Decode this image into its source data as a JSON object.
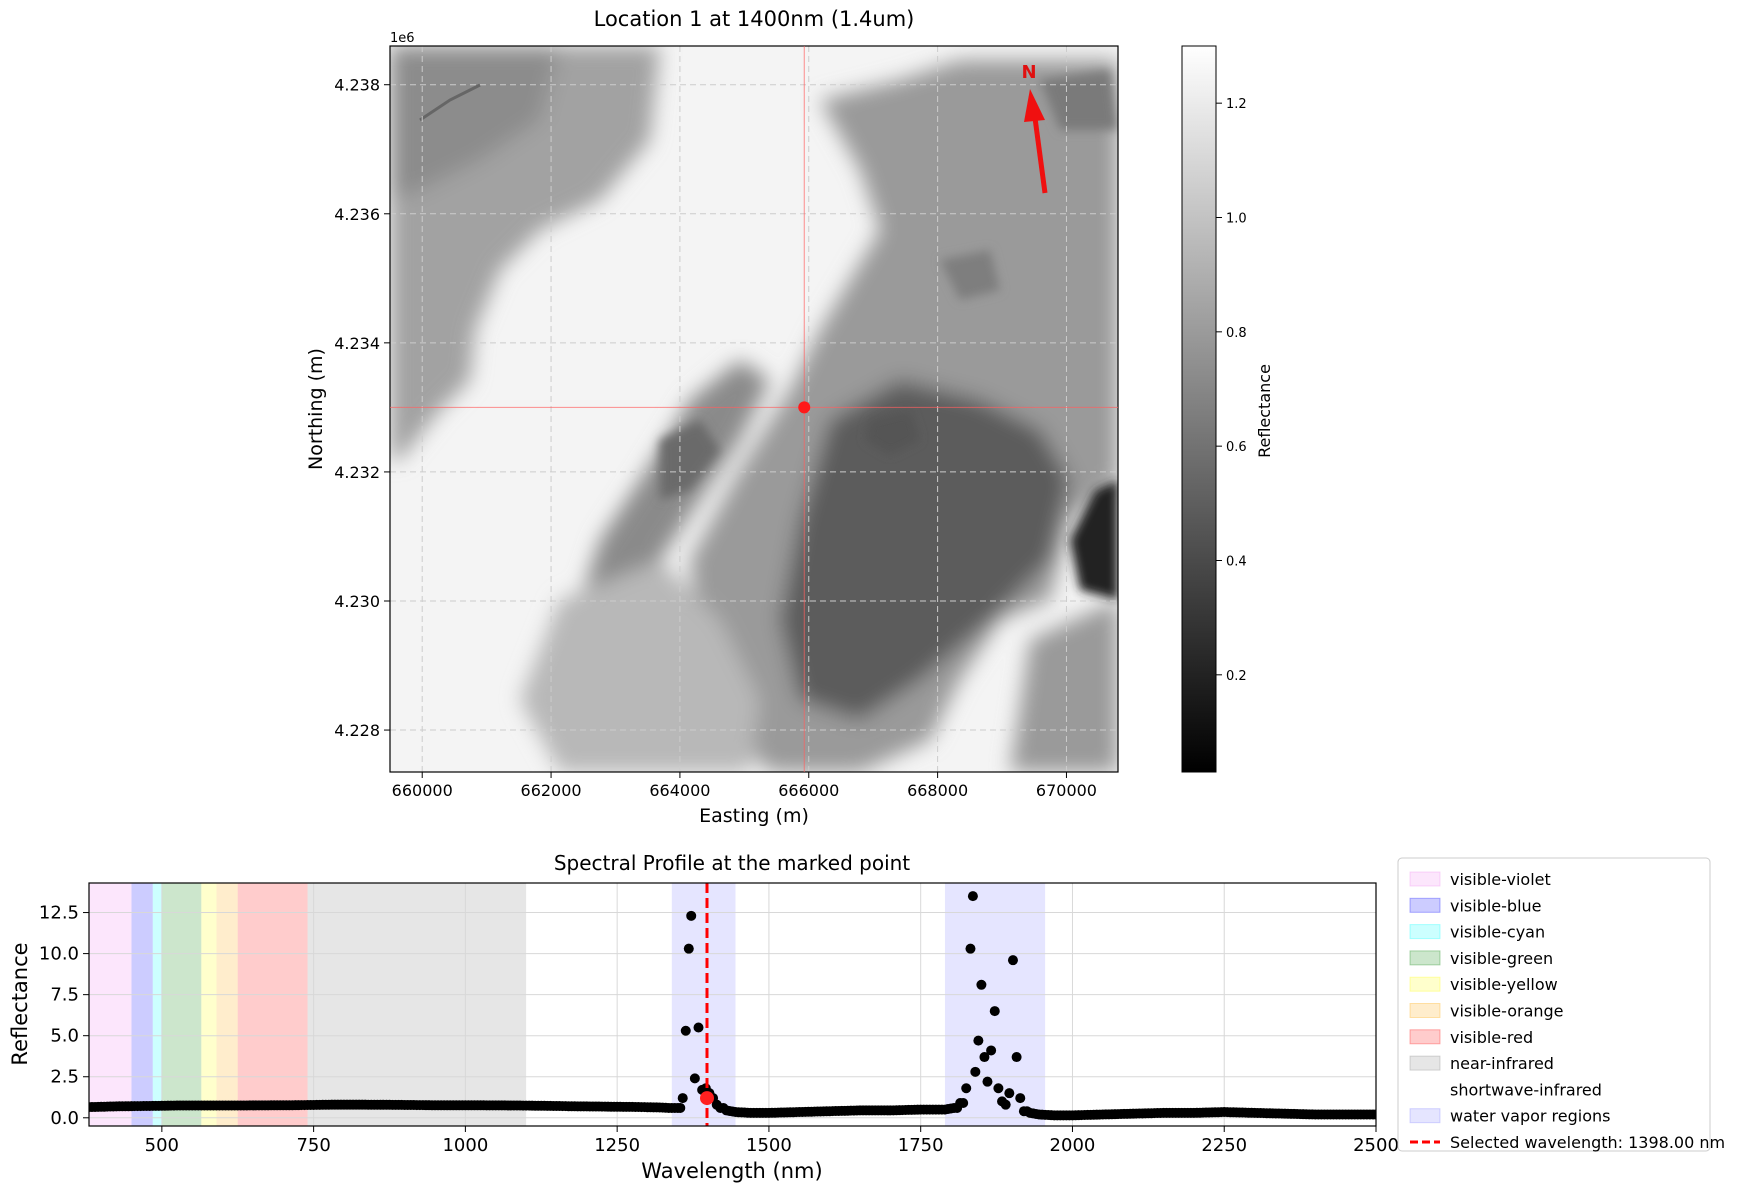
{
  "chart_data": [
    {
      "type": "heatmap",
      "title": "Location 1 at 1400nm (1.4um)",
      "xlabel": "Easting (m)",
      "ylabel": "Northing (m)",
      "xlim": [
        659500,
        670800
      ],
      "ylim": [
        4227350,
        4238600
      ],
      "x_ticks": [
        660000,
        662000,
        664000,
        666000,
        668000,
        670000
      ],
      "y_ticks": [
        4228000,
        4230000,
        4232000,
        4234000,
        4236000,
        4238000
      ],
      "x_tick_labels": [
        "660000",
        "662000",
        "664000",
        "666000",
        "668000",
        "670000"
      ],
      "y_tick_labels": [
        "4.228",
        "4.230",
        "4.232",
        "4.234",
        "4.236",
        "4.238"
      ],
      "y_offset_label": "1e6",
      "marked_point": {
        "x": 665930,
        "y": 4233000
      },
      "north_arrow_label": "N",
      "colorbar": {
        "label": "Reflectance",
        "range": [
          0.03,
          1.3
        ],
        "ticks": [
          0.2,
          0.4,
          0.6,
          0.8,
          1.0,
          1.2
        ],
        "tick_labels": [
          "0.2",
          "0.4",
          "0.6",
          "0.8",
          "1.0",
          "1.2"
        ]
      },
      "grid": true,
      "colormap": "gray"
    },
    {
      "type": "scatter",
      "title": "Spectral Profile at the marked point",
      "xlabel": "Wavelength (nm)",
      "ylabel": "Reflectance",
      "xlim": [
        380,
        2500
      ],
      "ylim": [
        -0.5,
        14.3
      ],
      "x_ticks": [
        500,
        750,
        1000,
        1250,
        1500,
        1750,
        2000,
        2250,
        2500
      ],
      "x_tick_labels": [
        "500",
        "750",
        "1000",
        "1250",
        "1500",
        "1750",
        "2000",
        "2250",
        "2500"
      ],
      "y_ticks": [
        0.0,
        2.5,
        5.0,
        7.5,
        10.0,
        12.5
      ],
      "y_tick_labels": [
        "0.0",
        "2.5",
        "5.0",
        "7.5",
        "10.0",
        "12.5"
      ],
      "grid": true,
      "legend_position": "outside-right",
      "regions": [
        {
          "name": "visible-violet",
          "range": [
            380,
            450
          ],
          "color": "#ee82ee",
          "alpha": 0.2
        },
        {
          "name": "visible-blue",
          "range": [
            450,
            485
          ],
          "color": "#0000ff",
          "alpha": 0.2
        },
        {
          "name": "visible-cyan",
          "range": [
            485,
            500
          ],
          "color": "#00ffff",
          "alpha": 0.2
        },
        {
          "name": "visible-green",
          "range": [
            500,
            565
          ],
          "color": "#008000",
          "alpha": 0.2
        },
        {
          "name": "visible-yellow",
          "range": [
            565,
            590
          ],
          "color": "#ffff00",
          "alpha": 0.2
        },
        {
          "name": "visible-orange",
          "range": [
            590,
            625
          ],
          "color": "#ffa500",
          "alpha": 0.2
        },
        {
          "name": "visible-red",
          "range": [
            625,
            740
          ],
          "color": "#ff0000",
          "alpha": 0.2
        },
        {
          "name": "near-infrared",
          "range": [
            740,
            1100
          ],
          "color": "#808080",
          "alpha": 0.2
        },
        {
          "name": "shortwave-infrared",
          "range": [
            1100,
            2500
          ],
          "color": "#ffffff",
          "alpha": 0.2
        },
        {
          "name": "water vapor regions",
          "ranges": [
            [
              1340,
              1445
            ],
            [
              1790,
              1955
            ]
          ],
          "color": "#0000ff",
          "alpha": 0.1
        }
      ],
      "selected_wavelength": {
        "value": 1398.0,
        "label": "Selected wavelength: 1398.00 nm",
        "color": "#ff0000"
      },
      "selected_point": {
        "x": 1398,
        "y": 1.2
      },
      "series": [
        {
          "color": "#000000",
          "x": [
            380,
            430,
            480,
            530,
            580,
            630,
            680,
            730,
            780,
            830,
            880,
            930,
            980,
            1030,
            1080,
            1130,
            1180,
            1230,
            1280,
            1320,
            1335,
            1350,
            1358,
            1363,
            1368,
            1372,
            1378,
            1384,
            1390,
            1396,
            1402,
            1408,
            1414,
            1420,
            1430,
            1445,
            1470,
            1500,
            1550,
            1600,
            1650,
            1700,
            1750,
            1790,
            1805,
            1815,
            1825,
            1832,
            1836,
            1840,
            1845,
            1850,
            1855,
            1860,
            1866,
            1872,
            1878,
            1884,
            1890,
            1896,
            1902,
            1908,
            1914,
            1920,
            1930,
            1945,
            1970,
            2000,
            2050,
            2100,
            2150,
            2200,
            2250,
            2300,
            2350,
            2400,
            2450,
            2500
          ],
          "y": [
            0.65,
            0.7,
            0.72,
            0.75,
            0.75,
            0.75,
            0.76,
            0.77,
            0.8,
            0.8,
            0.79,
            0.77,
            0.76,
            0.76,
            0.75,
            0.73,
            0.7,
            0.68,
            0.66,
            0.63,
            0.6,
            0.6,
            1.2,
            5.3,
            10.3,
            12.3,
            2.4,
            5.5,
            1.7,
            1.8,
            1.5,
            1.2,
            0.8,
            0.6,
            0.45,
            0.35,
            0.3,
            0.3,
            0.35,
            0.4,
            0.45,
            0.45,
            0.5,
            0.5,
            0.6,
            0.9,
            1.8,
            10.3,
            13.5,
            2.8,
            4.7,
            8.1,
            3.7,
            2.2,
            4.1,
            6.5,
            1.8,
            1.0,
            0.8,
            1.5,
            9.6,
            3.7,
            1.2,
            0.4,
            0.3,
            0.2,
            0.15,
            0.15,
            0.2,
            0.25,
            0.3,
            0.3,
            0.35,
            0.3,
            0.25,
            0.2,
            0.2,
            0.2
          ]
        }
      ]
    }
  ]
}
